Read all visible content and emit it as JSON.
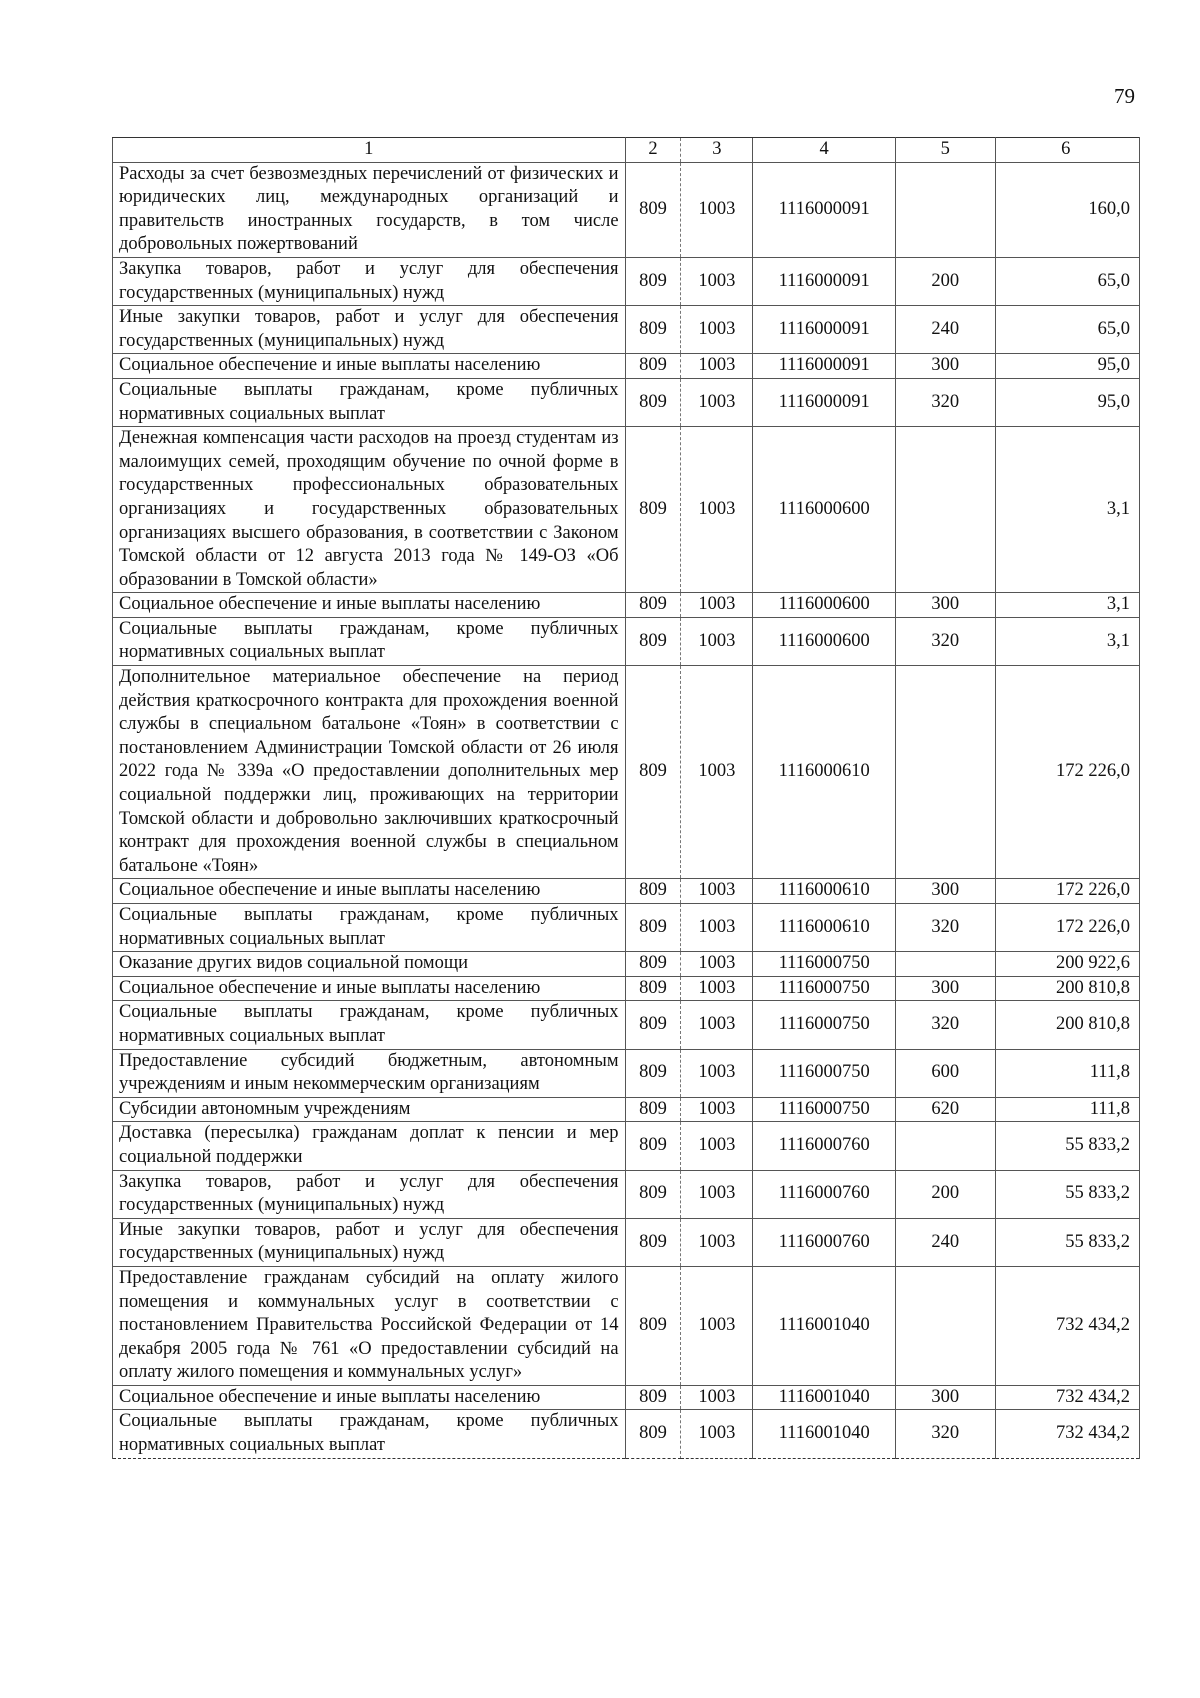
{
  "page_number": "79",
  "headers": [
    "1",
    "2",
    "3",
    "4",
    "5",
    "6"
  ],
  "rows": [
    {
      "name": "Расходы за счет безвозмездных перечислений от физических и юридических лиц, международных организаций и правительств иностранных государств, в том числе добровольных пожертвований",
      "gr": "809",
      "rz": "1003",
      "cs": "1116000091",
      "vr": "",
      "sum": "160,0"
    },
    {
      "name": "Закупка товаров, работ и услуг для обеспечения государственных (муниципальных) нужд",
      "gr": "809",
      "rz": "1003",
      "cs": "1116000091",
      "vr": "200",
      "sum": "65,0"
    },
    {
      "name": "Иные закупки товаров, работ и услуг для обеспечения государственных (муниципальных) нужд",
      "gr": "809",
      "rz": "1003",
      "cs": "1116000091",
      "vr": "240",
      "sum": "65,0"
    },
    {
      "name": "Социальное обеспечение и иные выплаты населению",
      "gr": "809",
      "rz": "1003",
      "cs": "1116000091",
      "vr": "300",
      "sum": "95,0"
    },
    {
      "name": "Социальные выплаты гражданам, кроме публичных нормативных социальных выплат",
      "gr": "809",
      "rz": "1003",
      "cs": "1116000091",
      "vr": "320",
      "sum": "95,0"
    },
    {
      "name": "Денежная компенсация части расходов на проезд студентам из малоимущих семей, проходящим обучение по очной форме в государственных профессиональных образовательных организациях и государственных образовательных организациях высшего образования, в соответствии с Законом Томской области от 12 августа 2013 года № 149-ОЗ «Об образовании в Томской области»",
      "gr": "809",
      "rz": "1003",
      "cs": "1116000600",
      "vr": "",
      "sum": "3,1"
    },
    {
      "name": "Социальное обеспечение и иные выплаты населению",
      "gr": "809",
      "rz": "1003",
      "cs": "1116000600",
      "vr": "300",
      "sum": "3,1"
    },
    {
      "name": "Социальные выплаты гражданам, кроме публичных нормативных социальных выплат",
      "gr": "809",
      "rz": "1003",
      "cs": "1116000600",
      "vr": "320",
      "sum": "3,1"
    },
    {
      "name": "Дополнительное материальное обеспечение на период действия краткосрочного контракта для прохождения военной службы в специальном батальоне «Тоян» в соответствии с постановлением Администрации Томской области от 26 июля 2022 года № 339а «О предоставлении дополнительных мер социальной поддержки лиц, проживающих на территории Томской области и добровольно заключивших краткосрочный контракт для прохождения военной службы в специальном батальоне «Тоян»",
      "gr": "809",
      "rz": "1003",
      "cs": "1116000610",
      "vr": "",
      "sum": "172 226,0"
    },
    {
      "name": "Социальное обеспечение и иные выплаты населению",
      "gr": "809",
      "rz": "1003",
      "cs": "1116000610",
      "vr": "300",
      "sum": "172 226,0"
    },
    {
      "name": "Социальные выплаты гражданам, кроме публичных нормативных социальных выплат",
      "gr": "809",
      "rz": "1003",
      "cs": "1116000610",
      "vr": "320",
      "sum": "172 226,0"
    },
    {
      "name": "Оказание других видов социальной помощи",
      "gr": "809",
      "rz": "1003",
      "cs": "1116000750",
      "vr": "",
      "sum": "200 922,6"
    },
    {
      "name": "Социальное обеспечение и иные выплаты населению",
      "gr": "809",
      "rz": "1003",
      "cs": "1116000750",
      "vr": "300",
      "sum": "200 810,8"
    },
    {
      "name": "Социальные выплаты гражданам, кроме публичных нормативных социальных выплат",
      "gr": "809",
      "rz": "1003",
      "cs": "1116000750",
      "vr": "320",
      "sum": "200 810,8"
    },
    {
      "name": "Предоставление субсидий бюджетным, автономным учреждениям и иным некоммерческим организациям",
      "gr": "809",
      "rz": "1003",
      "cs": "1116000750",
      "vr": "600",
      "sum": "111,8"
    },
    {
      "name": "Субсидии автономным учреждениям",
      "gr": "809",
      "rz": "1003",
      "cs": "1116000750",
      "vr": "620",
      "sum": "111,8"
    },
    {
      "name": "Доставка (пересылка) гражданам доплат к пенсии и мер социальной поддержки",
      "gr": "809",
      "rz": "1003",
      "cs": "1116000760",
      "vr": "",
      "sum": "55 833,2"
    },
    {
      "name": "Закупка товаров, работ и услуг для обеспечения государственных (муниципальных) нужд",
      "gr": "809",
      "rz": "1003",
      "cs": "1116000760",
      "vr": "200",
      "sum": "55 833,2"
    },
    {
      "name": "Иные закупки товаров, работ и услуг для обеспечения государственных (муниципальных) нужд",
      "gr": "809",
      "rz": "1003",
      "cs": "1116000760",
      "vr": "240",
      "sum": "55 833,2"
    },
    {
      "name": "Предоставление гражданам субсидий на оплату жилого помещения и коммунальных услуг в соответствии с постановлением Правительства Российской Федерации от 14 декабря 2005 года № 761 «О предоставлении субсидий на оплату жилого помещения и коммунальных услуг»",
      "gr": "809",
      "rz": "1003",
      "cs": "1116001040",
      "vr": "",
      "sum": "732 434,2"
    },
    {
      "name": "Социальное обеспечение и иные выплаты населению",
      "gr": "809",
      "rz": "1003",
      "cs": "1116001040",
      "vr": "300",
      "sum": "732 434,2"
    },
    {
      "name": "Социальные выплаты гражданам, кроме публичных нормативных социальных выплат",
      "gr": "809",
      "rz": "1003",
      "cs": "1116001040",
      "vr": "320",
      "sum": "732 434,2"
    }
  ]
}
